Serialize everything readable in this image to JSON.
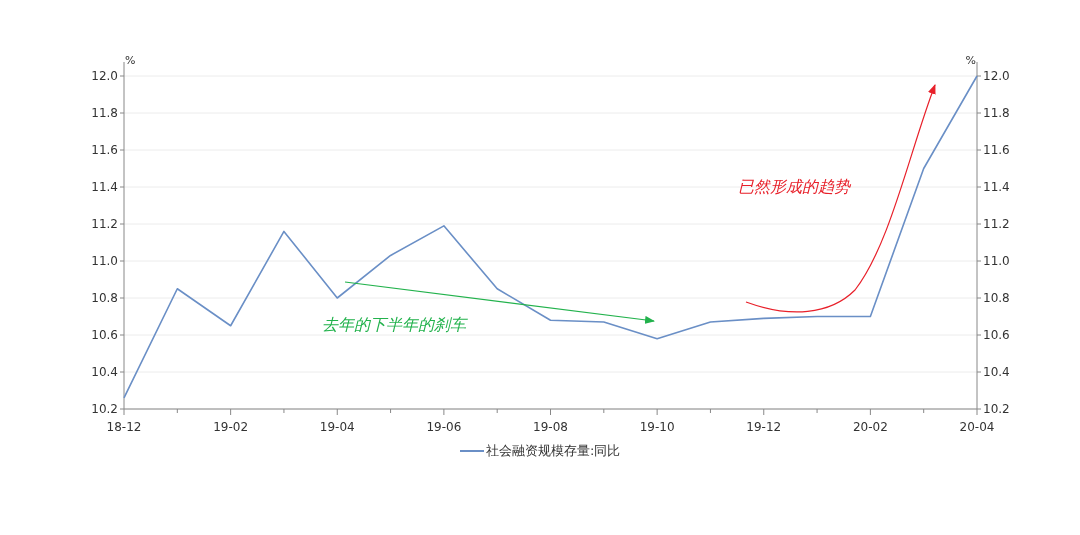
{
  "chart_data": {
    "type": "line",
    "ylabel": "%",
    "y2label": "%",
    "categories": [
      "18-12",
      null,
      "19-02",
      null,
      "19-04",
      null,
      "19-06",
      null,
      "19-08",
      null,
      "19-10",
      null,
      "19-12",
      null,
      "20-02",
      null,
      "20-04"
    ],
    "series": [
      {
        "name": "社会融资规模存量:同比",
        "color": "#6a8fc6",
        "values": [
          10.26,
          10.85,
          10.65,
          11.16,
          10.8,
          11.03,
          11.19,
          10.85,
          10.68,
          10.67,
          10.58,
          10.67,
          10.69,
          10.7,
          10.7,
          11.5,
          12.0
        ]
      }
    ],
    "ylim": [
      10.2,
      12.0
    ],
    "yticks": [
      {
        "value": 10.2,
        "label": "10.2"
      },
      {
        "value": 10.4,
        "label": "10.4"
      },
      {
        "value": 10.6,
        "label": "10.6"
      },
      {
        "value": 10.8,
        "label": "10.8"
      },
      {
        "value": 11.0,
        "label": "11.0"
      },
      {
        "value": 11.2,
        "label": "11.2"
      },
      {
        "value": 11.4,
        "label": "11.4"
      },
      {
        "value": 11.6,
        "label": "11.6"
      },
      {
        "value": 11.8,
        "label": "11.8"
      },
      {
        "value": 12.0,
        "label": "12.0"
      }
    ],
    "y2lim": [
      10.2,
      12.0
    ],
    "y2ticks": [
      {
        "value": 10.2,
        "label": "10.2"
      },
      {
        "value": 10.4,
        "label": "10.4"
      },
      {
        "value": 10.6,
        "label": "10.6"
      },
      {
        "value": 10.8,
        "label": "10.8"
      },
      {
        "value": 11.0,
        "label": "11.0"
      },
      {
        "value": 11.2,
        "label": "11.2"
      },
      {
        "value": 11.4,
        "label": "11.4"
      },
      {
        "value": 11.6,
        "label": "11.6"
      },
      {
        "value": 11.8,
        "label": "11.8"
      },
      {
        "value": 12.0,
        "label": "12.0"
      }
    ],
    "annotations": [
      "去年的下半年的刹车",
      "已然形成的趋势"
    ],
    "grid": "y",
    "legend": "bottom",
    "marker": "none",
    "line_style": "solid"
  }
}
